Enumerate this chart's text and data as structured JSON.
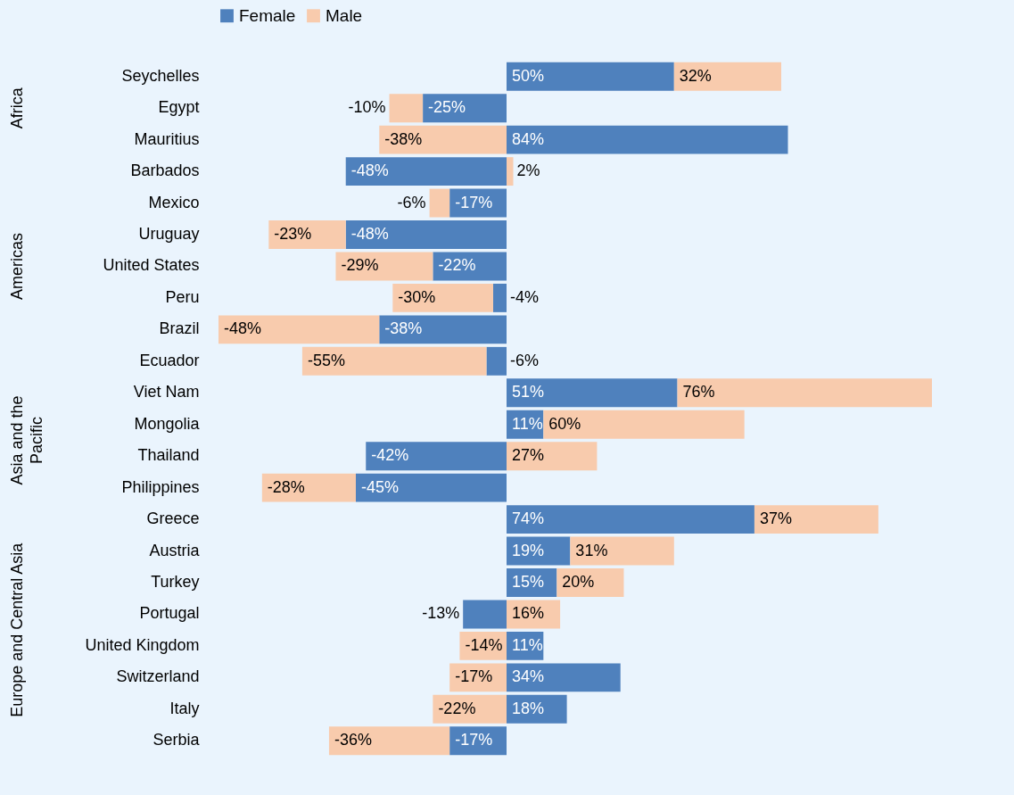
{
  "chart_data": {
    "type": "bar",
    "orientation": "horizontal",
    "stacked": true,
    "legend": "top",
    "categories": [
      "Seychelles",
      "Egypt",
      "Mauritius",
      "Barbados",
      "Mexico",
      "Uruguay",
      "United States",
      "Peru",
      "Brazil",
      "Ecuador",
      "Viet Nam",
      "Mongolia",
      "Thailand",
      "Philippines",
      "Greece",
      "Austria",
      "Turkey",
      "Portugal",
      "United Kingdom",
      "Switzerland",
      "Italy",
      "Serbia"
    ],
    "series": [
      {
        "name": "Female",
        "color": "#4f81bd",
        "values": [
          50,
          -25,
          84,
          -48,
          -17,
          -48,
          -22,
          -4,
          -38,
          -6,
          51,
          11,
          -42,
          -45,
          74,
          19,
          15,
          -13,
          11,
          34,
          18,
          -17
        ],
        "value_labels": [
          "50%",
          "-25%",
          "84%",
          "-48%",
          "-17%",
          "-48%",
          "-22%",
          "-4%",
          "-38%",
          "-6%",
          "51%",
          "11%",
          "-42%",
          "-45%",
          "74%",
          "19%",
          "15%",
          "-13%",
          "11%",
          "34%",
          "18%",
          "-17%"
        ]
      },
      {
        "name": "Male",
        "color": "#f8cbad",
        "values": [
          32,
          -10,
          -38,
          2,
          -6,
          -23,
          -29,
          -30,
          -48,
          -55,
          76,
          60,
          27,
          -28,
          37,
          31,
          20,
          16,
          -14,
          -17,
          -22,
          -36
        ],
        "value_labels": [
          "32%",
          "-10%",
          "-38%",
          "2%",
          "-6%",
          "-23%",
          "-29%",
          "-30%",
          "-48%",
          "-55%",
          "76%",
          "60%",
          "27%",
          "-28%",
          "37%",
          "31%",
          "20%",
          "16%",
          "-14%",
          "-17%",
          "-22%",
          "-36%"
        ]
      }
    ],
    "annotations": [
      "Africa",
      "Americas",
      "Asia and the Pacific",
      "Europe and Central Asia"
    ]
  }
}
